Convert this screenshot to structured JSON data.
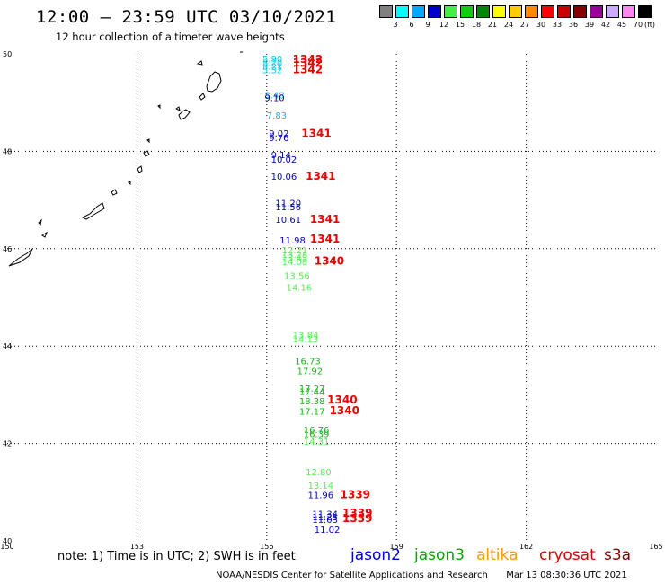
{
  "header": {
    "title": "12:00 – 23:59 UTC 03/10/2021",
    "subtitle": "12 hour collection of altimeter wave heights"
  },
  "color_scale": {
    "unit": "(ft)",
    "swatches": [
      {
        "label": "3",
        "color": "#808080"
      },
      {
        "label": "6",
        "color": "#00ffff"
      },
      {
        "label": "9",
        "color": "#00aaff"
      },
      {
        "label": "12",
        "color": "#0000cc"
      },
      {
        "label": "15",
        "color": "#44ee44"
      },
      {
        "label": "18",
        "color": "#11cc11"
      },
      {
        "label": "21",
        "color": "#008800"
      },
      {
        "label": "24",
        "color": "#ffff00"
      },
      {
        "label": "27",
        "color": "#ffcc00"
      },
      {
        "label": "30",
        "color": "#ff8800"
      },
      {
        "label": "33",
        "color": "#ff0000"
      },
      {
        "label": "36",
        "color": "#cc0000"
      },
      {
        "label": "39",
        "color": "#880000"
      },
      {
        "label": "42",
        "color": "#990099"
      },
      {
        "label": "45",
        "color": "#ccaaff"
      },
      {
        "label": "70",
        "color": "#ff88ee"
      },
      {
        "label": "",
        "color": "#000000"
      }
    ]
  },
  "axes": {
    "lat_labels": [
      "50",
      "48",
      "46",
      "44",
      "42",
      "40"
    ],
    "lon_labels": [
      "150",
      "153",
      "156",
      "159",
      "162",
      "165"
    ],
    "lat_values": [
      50,
      48,
      46,
      44,
      42,
      40
    ],
    "lon_values": [
      150,
      153,
      156,
      159,
      162,
      165
    ]
  },
  "observations": [
    {
      "text": "5.90",
      "lat": 49.83,
      "lon": 155.9,
      "color": "#00ccee"
    },
    {
      "text": "5.20",
      "lat": 49.75,
      "lon": 155.9,
      "color": "#00ccee"
    },
    {
      "text": "5.21",
      "lat": 49.68,
      "lon": 155.9,
      "color": "#00ccee"
    },
    {
      "text": "5.32",
      "lat": 49.6,
      "lon": 155.9,
      "color": "#00ccee"
    },
    {
      "text": "8.48",
      "lat": 49.09,
      "lon": 155.95,
      "color": "#2299ee"
    },
    {
      "text": "9.10",
      "lat": 49.03,
      "lon": 155.95,
      "color": "#0000cc"
    },
    {
      "text": "7.83",
      "lat": 48.67,
      "lon": 156.0,
      "color": "#22aaee"
    },
    {
      "text": "9.02",
      "lat": 48.3,
      "lon": 156.05,
      "color": "#0000cc"
    },
    {
      "text": "9.76",
      "lat": 48.21,
      "lon": 156.05,
      "color": "#0000cc"
    },
    {
      "text": "9.14",
      "lat": 47.86,
      "lon": 156.1,
      "color": "#0000cc"
    },
    {
      "text": "10.02",
      "lat": 47.77,
      "lon": 156.1,
      "color": "#0000cc"
    },
    {
      "text": "10.06",
      "lat": 47.42,
      "lon": 156.1,
      "color": "#0000cc"
    },
    {
      "text": "11.20",
      "lat": 46.87,
      "lon": 156.2,
      "color": "#0000cc"
    },
    {
      "text": "11.56",
      "lat": 46.79,
      "lon": 156.2,
      "color": "#0000cc"
    },
    {
      "text": "10.61",
      "lat": 46.53,
      "lon": 156.2,
      "color": "#0000cc"
    },
    {
      "text": "11.98",
      "lat": 46.11,
      "lon": 156.3,
      "color": "#0000cc"
    },
    {
      "text": "12.21",
      "lat": 45.9,
      "lon": 156.35,
      "color": "#55ee55"
    },
    {
      "text": "13.28",
      "lat": 45.81,
      "lon": 156.35,
      "color": "#55ee55"
    },
    {
      "text": "13.43",
      "lat": 45.75,
      "lon": 156.35,
      "color": "#55ee55"
    },
    {
      "text": "14.08",
      "lat": 45.66,
      "lon": 156.35,
      "color": "#55ee55"
    },
    {
      "text": "13.56",
      "lat": 45.38,
      "lon": 156.4,
      "color": "#55ee55"
    },
    {
      "text": "14.16",
      "lat": 45.14,
      "lon": 156.45,
      "color": "#55ee55"
    },
    {
      "text": "13.84",
      "lat": 44.16,
      "lon": 156.6,
      "color": "#55ee55"
    },
    {
      "text": "14.13",
      "lat": 44.08,
      "lon": 156.6,
      "color": "#55ee55"
    },
    {
      "text": "16.73",
      "lat": 43.63,
      "lon": 156.65,
      "color": "#11bb11"
    },
    {
      "text": "17.92",
      "lat": 43.42,
      "lon": 156.7,
      "color": "#11bb11"
    },
    {
      "text": "17.27",
      "lat": 43.06,
      "lon": 156.75,
      "color": "#11bb11"
    },
    {
      "text": "17.44",
      "lat": 43.0,
      "lon": 156.75,
      "color": "#11bb11"
    },
    {
      "text": "18.38",
      "lat": 42.8,
      "lon": 156.75,
      "color": "#11bb11"
    },
    {
      "text": "17.17",
      "lat": 42.59,
      "lon": 156.75,
      "color": "#11bb11"
    },
    {
      "text": "16.76",
      "lat": 42.21,
      "lon": 156.85,
      "color": "#11bb11"
    },
    {
      "text": "16.39",
      "lat": 42.13,
      "lon": 156.85,
      "color": "#11bb11"
    },
    {
      "text": "14.31",
      "lat": 41.97,
      "lon": 156.85,
      "color": "#55ee55"
    },
    {
      "text": "12.80",
      "lat": 41.35,
      "lon": 156.9,
      "color": "#55ee55"
    },
    {
      "text": "13.14",
      "lat": 41.07,
      "lon": 156.95,
      "color": "#55ee55"
    },
    {
      "text": "11.96",
      "lat": 40.88,
      "lon": 156.95,
      "color": "#0000cc"
    },
    {
      "text": "11.34",
      "lat": 40.49,
      "lon": 157.05,
      "color": "#0000cc"
    },
    {
      "text": "11.25",
      "lat": 40.42,
      "lon": 157.05,
      "color": "#0000cc"
    },
    {
      "text": "11.03",
      "lat": 40.37,
      "lon": 157.05,
      "color": "#0000cc"
    },
    {
      "text": "11.02",
      "lat": 40.17,
      "lon": 157.1,
      "color": "#0000cc"
    }
  ],
  "passes": [
    {
      "text": "1342",
      "lat": 49.82,
      "lon": 156.6
    },
    {
      "text": "1342",
      "lat": 49.74,
      "lon": 156.6
    },
    {
      "text": "1342",
      "lat": 49.6,
      "lon": 156.6
    },
    {
      "text": "1341",
      "lat": 48.29,
      "lon": 156.8
    },
    {
      "text": "1341",
      "lat": 47.42,
      "lon": 156.9
    },
    {
      "text": "1341",
      "lat": 46.53,
      "lon": 157.0
    },
    {
      "text": "1341",
      "lat": 46.13,
      "lon": 157.0
    },
    {
      "text": "1340",
      "lat": 45.67,
      "lon": 157.1
    },
    {
      "text": "1340",
      "lat": 42.82,
      "lon": 157.4
    },
    {
      "text": "1340",
      "lat": 42.6,
      "lon": 157.45
    },
    {
      "text": "1339",
      "lat": 40.88,
      "lon": 157.7
    },
    {
      "text": "1339",
      "lat": 40.5,
      "lon": 157.75
    },
    {
      "text": "1339",
      "lat": 40.39,
      "lon": 157.75
    }
  ],
  "pass_color": "#ee0000",
  "footer": {
    "note": "note: 1) Time is in UTC; 2) SWH is in feet",
    "satellites": [
      {
        "name": "jason2",
        "color": "#0000dd"
      },
      {
        "name": "jason3",
        "color": "#00aa00"
      },
      {
        "name": "altika",
        "color": "#ff9900"
      },
      {
        "name": "cryosat",
        "color": "#dd0000"
      },
      {
        "name": "s3a",
        "color": "#880000"
      }
    ],
    "credit": "NOAA/NESDIS Center for Satellite Applications and Research",
    "timestamp": "Mar 13 08:30:36 UTC 2021"
  }
}
